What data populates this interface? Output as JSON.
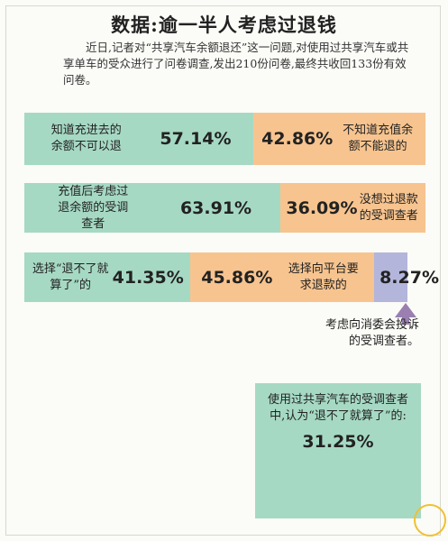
{
  "chart_data": {
    "type": "stacked-bar",
    "title": "数据:逾一半人考虑过退钱",
    "subtitle": "近日,记者对“共享汽车余额退还”这一问题,对使用过共享汽车或共享单车的受众进行了问卷调查,发出210份问卷,最终共收回133份有效问卷。",
    "bars": [
      {
        "segments": [
          {
            "name": "知道充进去的余额不可以退",
            "value": 57.14,
            "value_label": "57.14%",
            "color": "#a6d9c4"
          },
          {
            "name": "不知道充值余额不能退的",
            "value": 42.86,
            "value_label": "42.86%",
            "color": "#f7c48f"
          }
        ]
      },
      {
        "segments": [
          {
            "name": "充值后考虑过退余额的受调查者",
            "value": 63.91,
            "value_label": "63.91%",
            "color": "#a6d9c4"
          },
          {
            "name": "没想过退款的受调查者",
            "value": 36.09,
            "value_label": "36.09%",
            "color": "#f7c48f"
          }
        ]
      },
      {
        "segments": [
          {
            "name": "选择“退不了就算了”的",
            "value": 41.35,
            "value_label": "41.35%",
            "color": "#a6d9c4"
          },
          {
            "name": "选择向平台要求退款的",
            "value": 45.86,
            "value_label": "45.86%",
            "color": "#f7c48f"
          },
          {
            "name": "考虑向消委会投诉的受调查者。",
            "value": 8.27,
            "value_label": "8.27%",
            "color": "#b3b5db",
            "label_position": "below"
          }
        ]
      }
    ],
    "note": {
      "text": "使用过共享汽车的受调查者中,认为“退不了就算了”的:",
      "value_label": "31.25%"
    }
  }
}
